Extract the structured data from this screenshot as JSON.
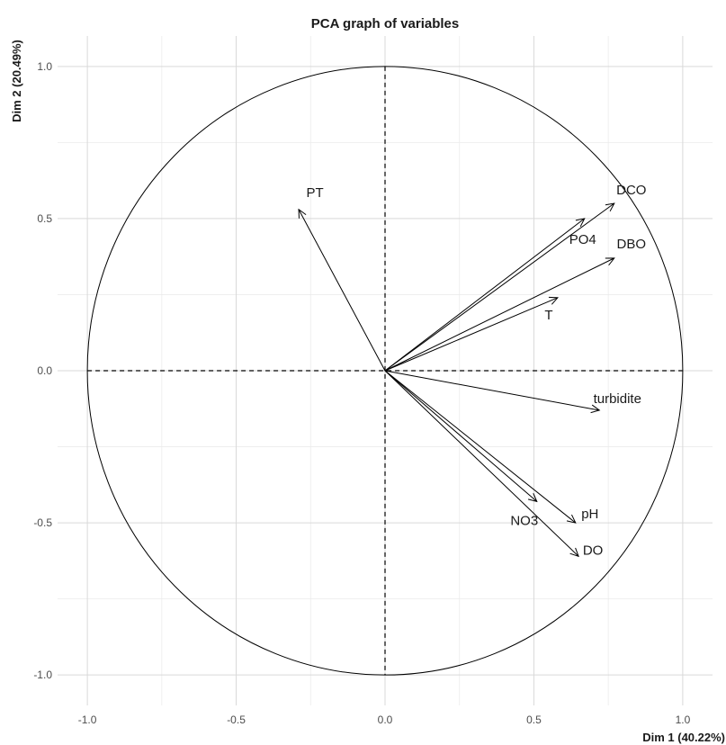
{
  "chart_data": {
    "type": "scatter",
    "title": "PCA graph of variables",
    "xlabel": "Dim 1 (40.22%)",
    "ylabel": "Dim 2 (20.49%)",
    "xlim": [
      -1.1,
      1.1
    ],
    "ylim": [
      -1.1,
      1.1
    ],
    "xticks": [
      -1.0,
      -0.5,
      0.0,
      0.5,
      1.0
    ],
    "yticks": [
      -1.0,
      -0.5,
      0.0,
      0.5,
      1.0
    ],
    "tick_labels_x": [
      "-1.0",
      "-0.5",
      "0.0",
      "0.5",
      "1.0"
    ],
    "tick_labels_y": [
      "-1.0",
      "-0.5",
      "0.0",
      "0.5",
      "1.0"
    ],
    "grid": true,
    "unit_circle": true,
    "variables": [
      {
        "name": "PT",
        "x": -0.29,
        "y": 0.53
      },
      {
        "name": "DCO",
        "x": 0.77,
        "y": 0.55
      },
      {
        "name": "PO4",
        "x": 0.67,
        "y": 0.5
      },
      {
        "name": "DBO",
        "x": 0.77,
        "y": 0.37
      },
      {
        "name": "T",
        "x": 0.58,
        "y": 0.24
      },
      {
        "name": "turbidite",
        "x": 0.72,
        "y": -0.13
      },
      {
        "name": "NO3",
        "x": 0.51,
        "y": -0.43
      },
      {
        "name": "pH",
        "x": 0.64,
        "y": -0.5
      },
      {
        "name": "DO",
        "x": 0.65,
        "y": -0.61
      }
    ]
  }
}
